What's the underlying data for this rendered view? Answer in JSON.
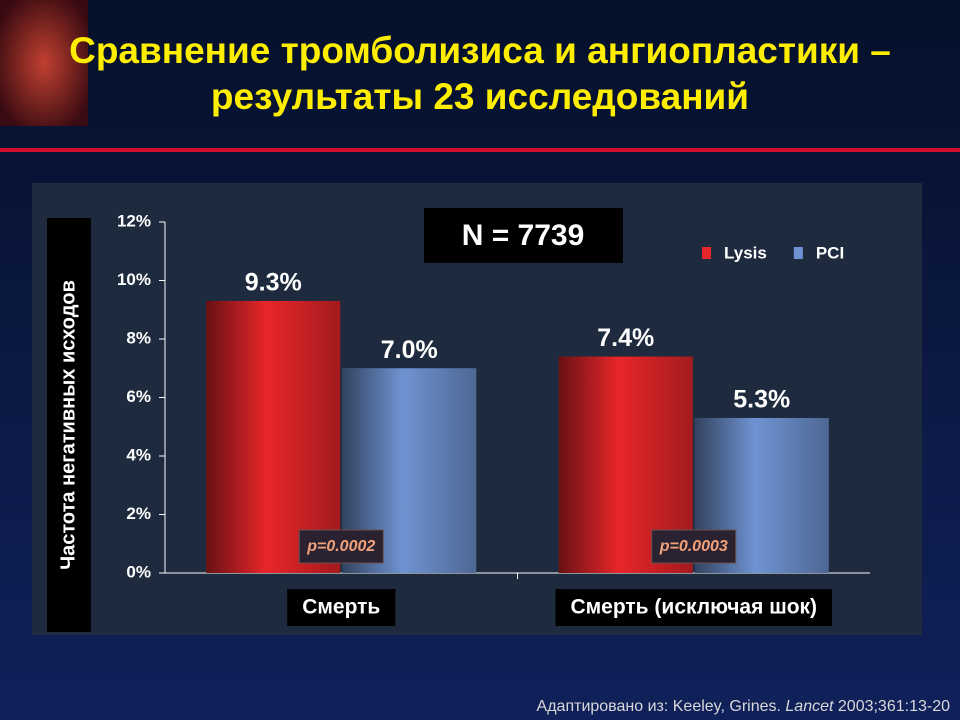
{
  "title": "Сравнение тромболизиса и ангиопластики – результаты 23 исследований",
  "source": {
    "prefix": "Адаптировано из: Keeley, Grines.",
    "journal": "Lancet",
    "rest": "2003;361:13-20"
  },
  "chart_data": {
    "type": "bar",
    "y_label": "Частота негативных исходов",
    "annotation": "N = 7739",
    "categories": [
      "Смерть",
      "Смерть (исключая шок)"
    ],
    "p_values": [
      "p=0.0002",
      "p=0.0003"
    ],
    "series": [
      {
        "name": "Lysis",
        "color": "#e8262a",
        "values": [
          9.3,
          7.4
        ],
        "value_labels": [
          "9.3%",
          "7.4%"
        ]
      },
      {
        "name": "PCI",
        "color": "#6f93d2",
        "values": [
          7.0,
          5.3
        ],
        "value_labels": [
          "7.0%",
          "5.3%"
        ]
      }
    ],
    "ylim": [
      0,
      12
    ],
    "yticks": [
      {
        "value": 0,
        "label": "0%"
      },
      {
        "value": 2,
        "label": "2%"
      },
      {
        "value": 4,
        "label": "4%"
      },
      {
        "value": 6,
        "label": "6%"
      },
      {
        "value": 8,
        "label": "8%"
      },
      {
        "value": 10,
        "label": "10%"
      },
      {
        "value": 12,
        "label": "12%"
      }
    ],
    "grid": false
  }
}
